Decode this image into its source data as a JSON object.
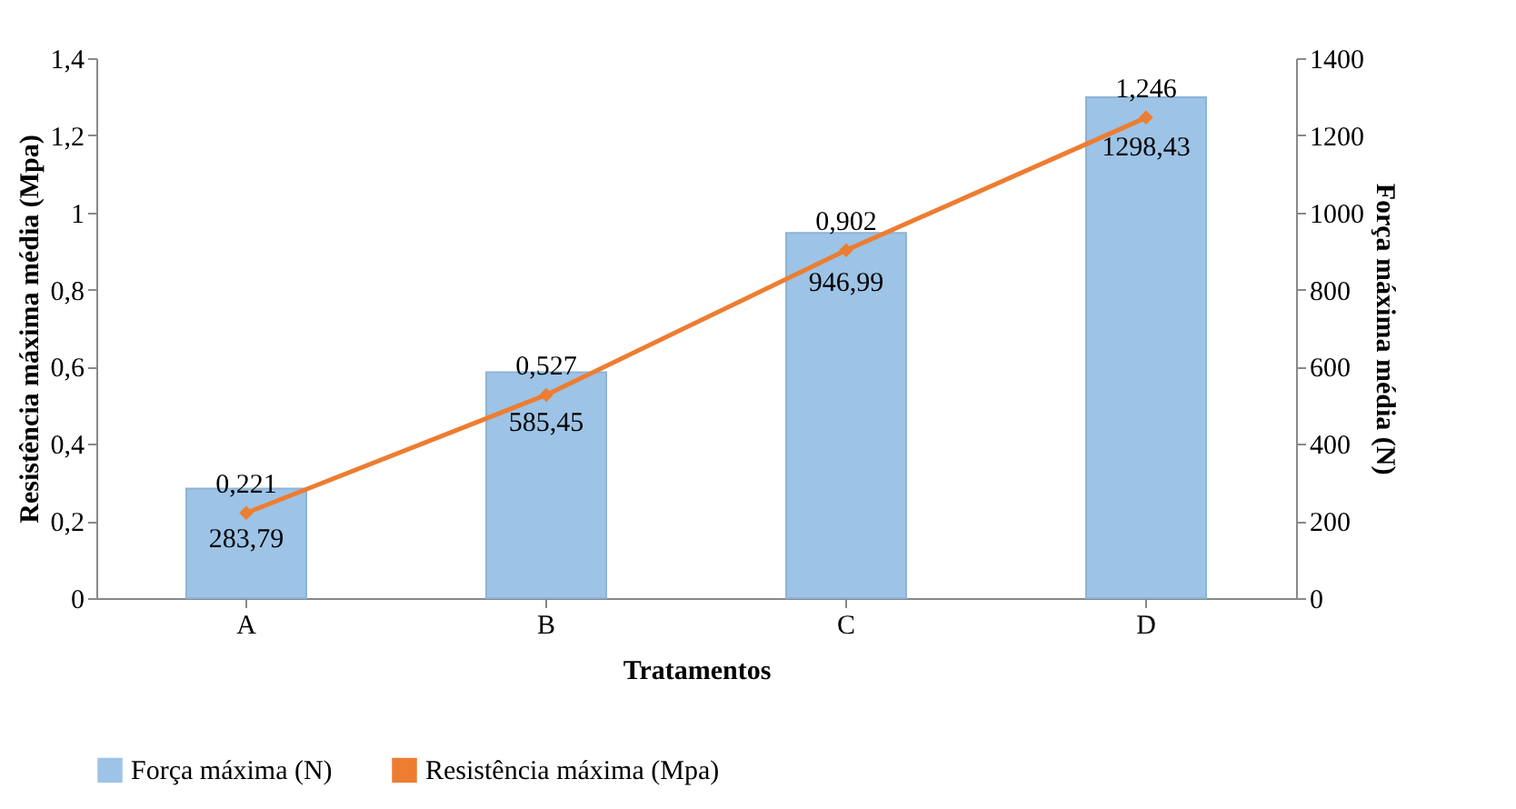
{
  "chart_data": {
    "type": "bar",
    "categories": [
      "A",
      "B",
      "C",
      "D"
    ],
    "xlabel": "Tratamentos",
    "ylabel": "Resistência máxima média (Mpa)",
    "y2label": "Força máxima média (N)",
    "ylim": [
      0,
      1.4
    ],
    "yticks": [
      0,
      {
        "value": 0.2,
        "label": "0,2"
      },
      {
        "value": 0.4,
        "label": "0,4"
      },
      {
        "value": 0.6,
        "label": "0,6"
      },
      {
        "value": 0.8,
        "label": "0,8"
      },
      1,
      {
        "value": 1.2,
        "label": "1,2"
      },
      {
        "value": 1.4,
        "label": "1,4"
      }
    ],
    "y2lim": [
      0,
      1400
    ],
    "y2ticks": [
      0,
      200,
      400,
      600,
      800,
      1000,
      1200,
      1400
    ],
    "series": [
      {
        "name": "Força máxima (N)",
        "axis": "y2",
        "color": "#9dc3e6",
        "values": [
          283.79,
          585.45,
          946.99,
          1298.43
        ],
        "value_labels": [
          "283,79",
          "585,45",
          "946,99",
          "1298,43"
        ]
      },
      {
        "name": "Resistência máxima (Mpa)",
        "type": "line",
        "color": "#ed7d31",
        "values": [
          0.221,
          0.527,
          0.902,
          1.246
        ],
        "value_labels": [
          "0,221",
          "0,527",
          "0,902",
          "1,246"
        ]
      }
    ],
    "marker": "diamond",
    "legend": "bottom"
  }
}
